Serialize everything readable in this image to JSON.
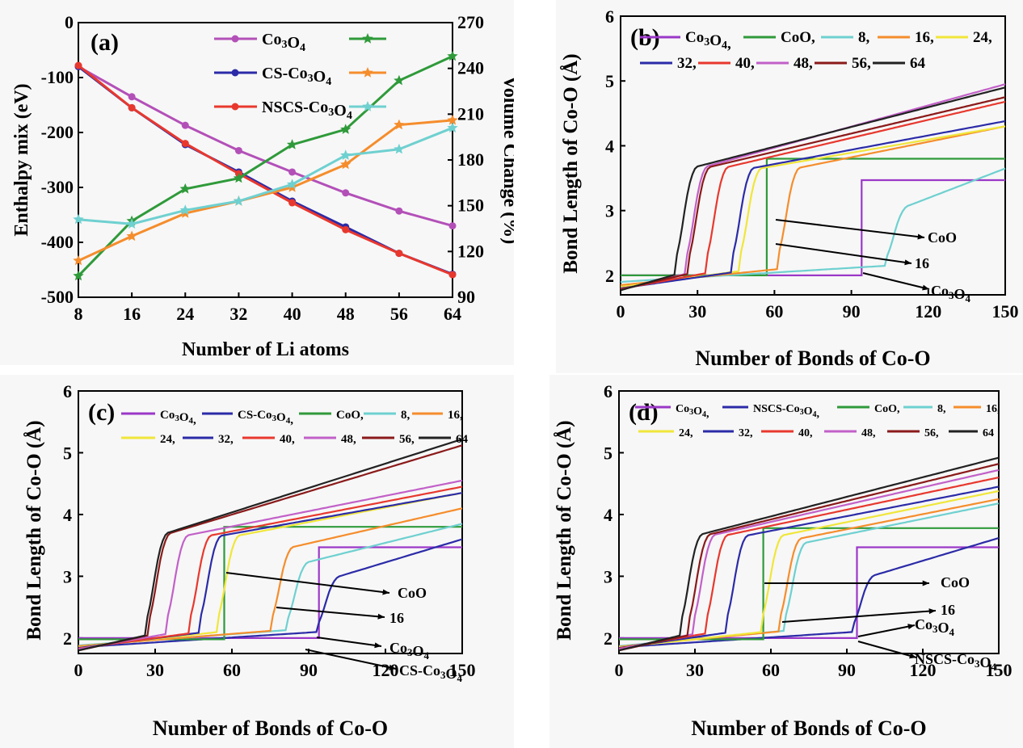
{
  "chart_data": [
    {
      "panel": "(a)",
      "type": "line",
      "xlabel": "Number of Li atoms",
      "ylabel": "Enthalpy mix (eV)",
      "y2label": "Volume Change (%)",
      "xticks": [
        "8",
        "16",
        "24",
        "32",
        "40",
        "48",
        "56",
        "64"
      ],
      "yticks": [
        "0",
        "-100",
        "-200",
        "-300",
        "-400",
        "-500"
      ],
      "y2ticks": [
        "270",
        "240",
        "210",
        "180",
        "150",
        "120",
        "90"
      ],
      "xlim": [
        8,
        64
      ],
      "ylim": [
        -500,
        0
      ],
      "y2lim": [
        90,
        270
      ],
      "legend_position": "top-center",
      "x": [
        8,
        16,
        24,
        32,
        40,
        48,
        56,
        64
      ],
      "series": [
        {
          "name": "Co3O4",
          "axis": "left",
          "color": "#b350b8",
          "marker": "circle",
          "values": [
            -80,
            -135,
            -187,
            -233,
            -272,
            -310,
            -343,
            -370
          ]
        },
        {
          "name": "CS-Co3O4",
          "axis": "left",
          "color": "#2b2ba8",
          "marker": "circle",
          "values": [
            -80,
            -155,
            -222,
            -272,
            -325,
            -372,
            -420,
            -458
          ]
        },
        {
          "name": "NSCS-Co3O4",
          "axis": "left",
          "color": "#e8382e",
          "marker": "circle",
          "values": [
            -78,
            -155,
            -220,
            -275,
            -328,
            -377,
            -420,
            -459
          ]
        },
        {
          "name": "",
          "axis": "right",
          "color": "#2f9a3a",
          "marker": "star",
          "values": [
            104,
            140,
            161,
            168,
            190,
            200,
            232,
            248
          ]
        },
        {
          "name": "",
          "axis": "right",
          "color": "#f58d2c",
          "marker": "star",
          "values": [
            114,
            130,
            145,
            153,
            162,
            177,
            203,
            206
          ]
        },
        {
          "name": "",
          "axis": "right",
          "color": "#6fd0d0",
          "marker": "star",
          "values": [
            141,
            138,
            147,
            153,
            164,
            183,
            187,
            201
          ]
        }
      ]
    },
    {
      "panel": "(b)",
      "type": "line",
      "xlabel": "Number of Bonds of Co-O",
      "ylabel": "Bond Length of Co-O (Å)",
      "xticks": [
        "0",
        "30",
        "60",
        "90",
        "120",
        "150"
      ],
      "yticks": [
        "2",
        "3",
        "4",
        "5",
        "6"
      ],
      "xlim": [
        0,
        150
      ],
      "ylim": [
        1.7,
        6
      ],
      "legend": [
        "Co3O4,",
        "CoO,",
        "8,",
        "16,",
        "24,",
        "32,",
        "40,",
        "48,",
        "56,",
        "64"
      ],
      "annotations": [
        "CoO",
        "16",
        "Co3O4"
      ],
      "series": [
        {
          "name": "Co3O4",
          "color": "#9b38c8",
          "kind": "step",
          "low": 2.0,
          "high": 3.47,
          "at": 94
        },
        {
          "name": "CoO",
          "color": "#2f9a3a",
          "kind": "step",
          "low": 2.0,
          "high": 3.8,
          "at": 57
        },
        {
          "name": "8",
          "color": "#6fd0d0",
          "kind": "curve",
          "jump": 104,
          "y0": 1.9,
          "y1": 3.65
        },
        {
          "name": "16",
          "color": "#f58d2c",
          "kind": "curve",
          "jump": 62,
          "y0": 1.85,
          "y1": 4.3
        },
        {
          "name": "24",
          "color": "#f0e63a",
          "kind": "curve",
          "jump": 47,
          "y0": 1.82,
          "y1": 4.3
        },
        {
          "name": "32",
          "color": "#2b2ba8",
          "kind": "curve",
          "jump": 44,
          "y0": 1.8,
          "y1": 4.38
        },
        {
          "name": "40",
          "color": "#e8382e",
          "kind": "curve",
          "jump": 34,
          "y0": 1.79,
          "y1": 4.68
        },
        {
          "name": "48",
          "color": "#c260c8",
          "kind": "curve",
          "jump": 26,
          "y0": 1.78,
          "y1": 4.95
        },
        {
          "name": "56",
          "color": "#8b1a1a",
          "kind": "curve",
          "jump": 27,
          "y0": 1.78,
          "y1": 4.75
        },
        {
          "name": "64",
          "color": "#222222",
          "kind": "curve",
          "jump": 22,
          "y0": 1.77,
          "y1": 4.9
        }
      ]
    },
    {
      "panel": "(c)",
      "type": "line",
      "xlabel": "Number of Bonds of Co-O",
      "ylabel": "Bond Length of Co-O (Å)",
      "xticks": [
        "0",
        "30",
        "60",
        "90",
        "120",
        "150"
      ],
      "yticks": [
        "2",
        "3",
        "4",
        "5",
        "6"
      ],
      "xlim": [
        0,
        150
      ],
      "ylim": [
        1.75,
        6
      ],
      "legend": [
        "Co3O4,",
        "CS-Co3O4,",
        "CoO,",
        "8,",
        "16,",
        "24,",
        "32,",
        "40,",
        "48,",
        "56,",
        "64"
      ],
      "annotations": [
        "CoO",
        "16",
        "Co3O4",
        "CS-Co3O4"
      ],
      "series": [
        {
          "name": "Co3O4",
          "color": "#9b38c8",
          "kind": "step",
          "low": 2.0,
          "high": 3.47,
          "at": 94
        },
        {
          "name": "CS-Co3O4",
          "color": "#2b2ba8",
          "kind": "curve",
          "jump": 94,
          "y0": 1.85,
          "y1": 3.6
        },
        {
          "name": "CoO",
          "color": "#2f9a3a",
          "kind": "step",
          "low": 1.98,
          "high": 3.8,
          "at": 57
        },
        {
          "name": "8",
          "color": "#6fd0d0",
          "kind": "curve",
          "jump": 82,
          "y0": 1.88,
          "y1": 3.85
        },
        {
          "name": "16",
          "color": "#f58d2c",
          "kind": "curve",
          "jump": 76,
          "y0": 1.87,
          "y1": 4.1
        },
        {
          "name": "24",
          "color": "#f0e63a",
          "kind": "curve",
          "jump": 55,
          "y0": 1.85,
          "y1": 4.35
        },
        {
          "name": "32",
          "color": "#2b2ba8",
          "kind": "curve",
          "jump": 48,
          "y0": 1.84,
          "y1": 4.35
        },
        {
          "name": "40",
          "color": "#e8382e",
          "kind": "curve",
          "jump": 44,
          "y0": 1.83,
          "y1": 4.45
        },
        {
          "name": "48",
          "color": "#c260c8",
          "kind": "curve",
          "jump": 35,
          "y0": 1.82,
          "y1": 4.55
        },
        {
          "name": "56",
          "color": "#8b1a1a",
          "kind": "curve",
          "jump": 28,
          "y0": 1.8,
          "y1": 5.12
        },
        {
          "name": "64",
          "color": "#222222",
          "kind": "curve",
          "jump": 27,
          "y0": 1.8,
          "y1": 5.22
        }
      ]
    },
    {
      "panel": "(d)",
      "type": "line",
      "xlabel": "Number of Bonds of Co-O",
      "ylabel": "Bond Length of Co-O (Å)",
      "xticks": [
        "0",
        "30",
        "60",
        "90",
        "120",
        "150"
      ],
      "yticks": [
        "2",
        "3",
        "4",
        "5",
        "6"
      ],
      "xlim": [
        0,
        150
      ],
      "ylim": [
        1.75,
        6
      ],
      "legend": [
        "Co3O4,",
        "NSCS-Co3O4,",
        "CoO,",
        "8,",
        "16,",
        "24,",
        "32,",
        "40,",
        "48,",
        "56,",
        "64"
      ],
      "annotations": [
        "CoO",
        "16",
        "Co3O4",
        "NSCS-Co3O4"
      ],
      "series": [
        {
          "name": "Co3O4",
          "color": "#9b38c8",
          "kind": "step",
          "low": 2.0,
          "high": 3.47,
          "at": 94
        },
        {
          "name": "NSCS-Co3O4",
          "color": "#2b2ba8",
          "kind": "curve",
          "jump": 93,
          "y0": 1.85,
          "y1": 3.62
        },
        {
          "name": "CoO",
          "color": "#2f9a3a",
          "kind": "step",
          "low": 1.98,
          "high": 3.78,
          "at": 57
        },
        {
          "name": "8",
          "color": "#6fd0d0",
          "kind": "curve",
          "jump": 66,
          "y0": 1.87,
          "y1": 4.18
        },
        {
          "name": "16",
          "color": "#f58d2c",
          "kind": "curve",
          "jump": 64,
          "y0": 1.86,
          "y1": 4.25
        },
        {
          "name": "24",
          "color": "#f0e63a",
          "kind": "curve",
          "jump": 57,
          "y0": 1.85,
          "y1": 4.38
        },
        {
          "name": "32",
          "color": "#2b2ba8",
          "kind": "curve",
          "jump": 43,
          "y0": 1.84,
          "y1": 4.45
        },
        {
          "name": "40",
          "color": "#e8382e",
          "kind": "curve",
          "jump": 35,
          "y0": 1.83,
          "y1": 4.6
        },
        {
          "name": "48",
          "color": "#c260c8",
          "kind": "curve",
          "jump": 30,
          "y0": 1.82,
          "y1": 4.72
        },
        {
          "name": "56",
          "color": "#8b1a1a",
          "kind": "curve",
          "jump": 28,
          "y0": 1.8,
          "y1": 4.82
        },
        {
          "name": "64",
          "color": "#222222",
          "kind": "curve",
          "jump": 25,
          "y0": 1.8,
          "y1": 4.92
        }
      ]
    }
  ]
}
